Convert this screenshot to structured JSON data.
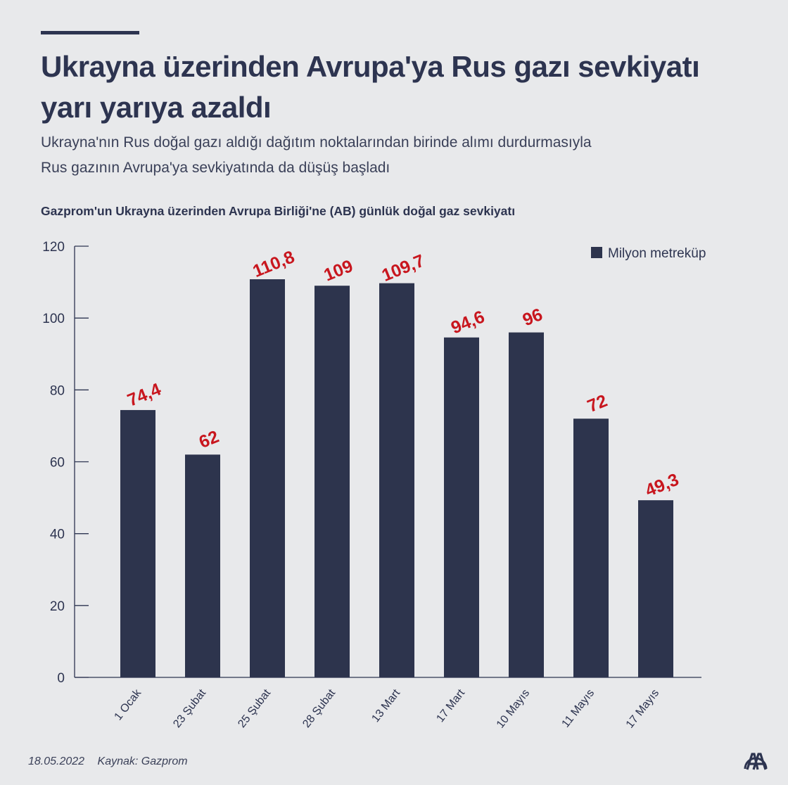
{
  "header": {
    "title": "Ukrayna üzerinden Avrupa'ya Rus gazı sevkiyatı yarı yarıya azaldı",
    "subtitle_line1": "Ukrayna'nın Rus doğal gazı aldığı dağıtım noktalarından birinde alımı durdurmasıyla",
    "subtitle_line2": "Rus gazının Avrupa'ya sevkiyatında da düşüş başladı"
  },
  "chart_data": {
    "type": "bar",
    "title": "Gazprom'un Ukrayna üzerinden Avrupa Birliği'ne (AB) günlük doğal gaz sevkiyatı",
    "categories": [
      "1 Ocak",
      "23 Şubat",
      "25 Şubat",
      "28 Şubat",
      "13 Mart",
      "17 Mart",
      "10 Mayıs",
      "11 Mayıs",
      "17 Mayıs"
    ],
    "series": [
      {
        "name": "Milyon metreküp",
        "values": [
          74.4,
          62,
          110.8,
          109,
          109.7,
          94.6,
          96,
          72,
          49.3
        ]
      }
    ],
    "data_labels": [
      "74,4",
      "62",
      "110,8",
      "109",
      "109,7",
      "94,6",
      "96",
      "72",
      "49,3"
    ],
    "ylim": [
      0,
      120
    ],
    "yticks": [
      0,
      20,
      40,
      60,
      80,
      100,
      120
    ],
    "legend": "top-right",
    "grid": false,
    "colors": {
      "bar": "#2d344d",
      "label": "#c8161e",
      "axis": "#2d3450"
    }
  },
  "footer": {
    "date": "18.05.2022",
    "source": "Kaynak: Gazprom",
    "logo": "AA"
  }
}
